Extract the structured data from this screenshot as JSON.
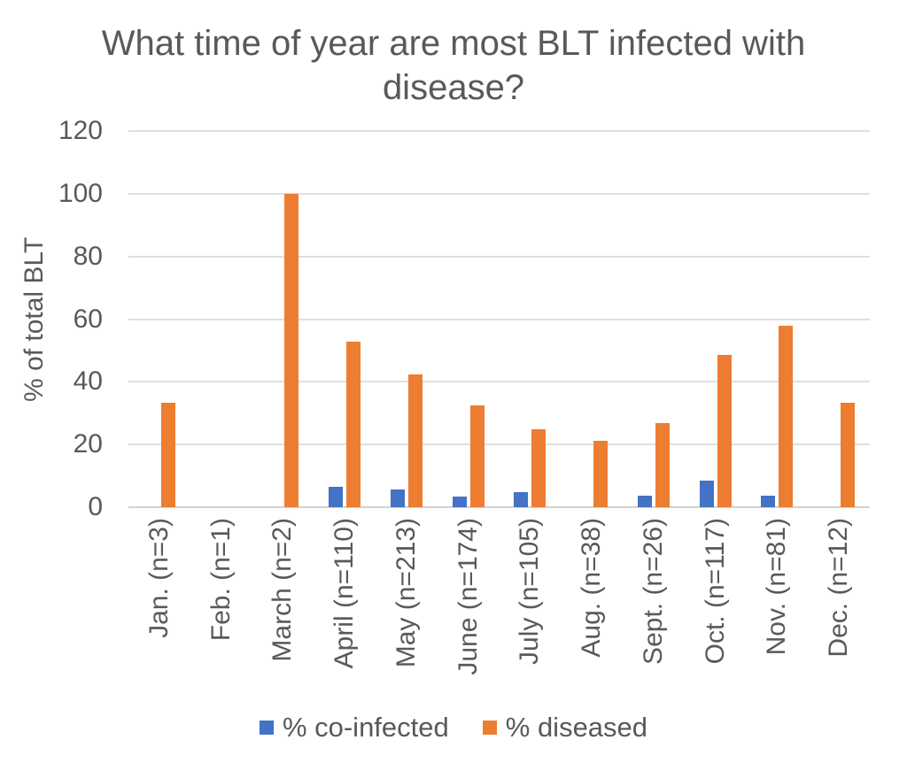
{
  "chart_data": {
    "type": "bar",
    "title": "What time of year are most BLT infected with disease?",
    "ylabel": "% of total BLT",
    "xlabel": "",
    "ylim": [
      0,
      120
    ],
    "yticks": [
      0,
      20,
      40,
      60,
      80,
      100,
      120
    ],
    "grid": true,
    "legend_position": "bottom",
    "categories": [
      "Jan. (n=3)",
      "Feb. (n=1)",
      "March (n=2)",
      "April (n=110)",
      "May (n=213)",
      "June (n=174)",
      "July (n=105)",
      "Aug. (n=38)",
      "Sept. (n=26)",
      "Oct. (n=117)",
      "Nov. (n=81)",
      "Dec. (n=12)"
    ],
    "series": [
      {
        "name": "% co-infected",
        "color": "#4472C4",
        "values": [
          0,
          0,
          0,
          6.4,
          5.6,
          3.4,
          4.8,
          0,
          3.8,
          8.5,
          3.7,
          0
        ]
      },
      {
        "name": "% diseased",
        "color": "#ED7D31",
        "values": [
          33.3,
          0,
          100,
          52.7,
          42.3,
          32.5,
          24.8,
          21.1,
          26.9,
          48.7,
          58,
          33.3
        ]
      }
    ]
  },
  "colors": {
    "text": "#595959",
    "gridline": "#DFDFDF",
    "axis_line": "#D2D2D2",
    "background": "#FFFFFF"
  }
}
